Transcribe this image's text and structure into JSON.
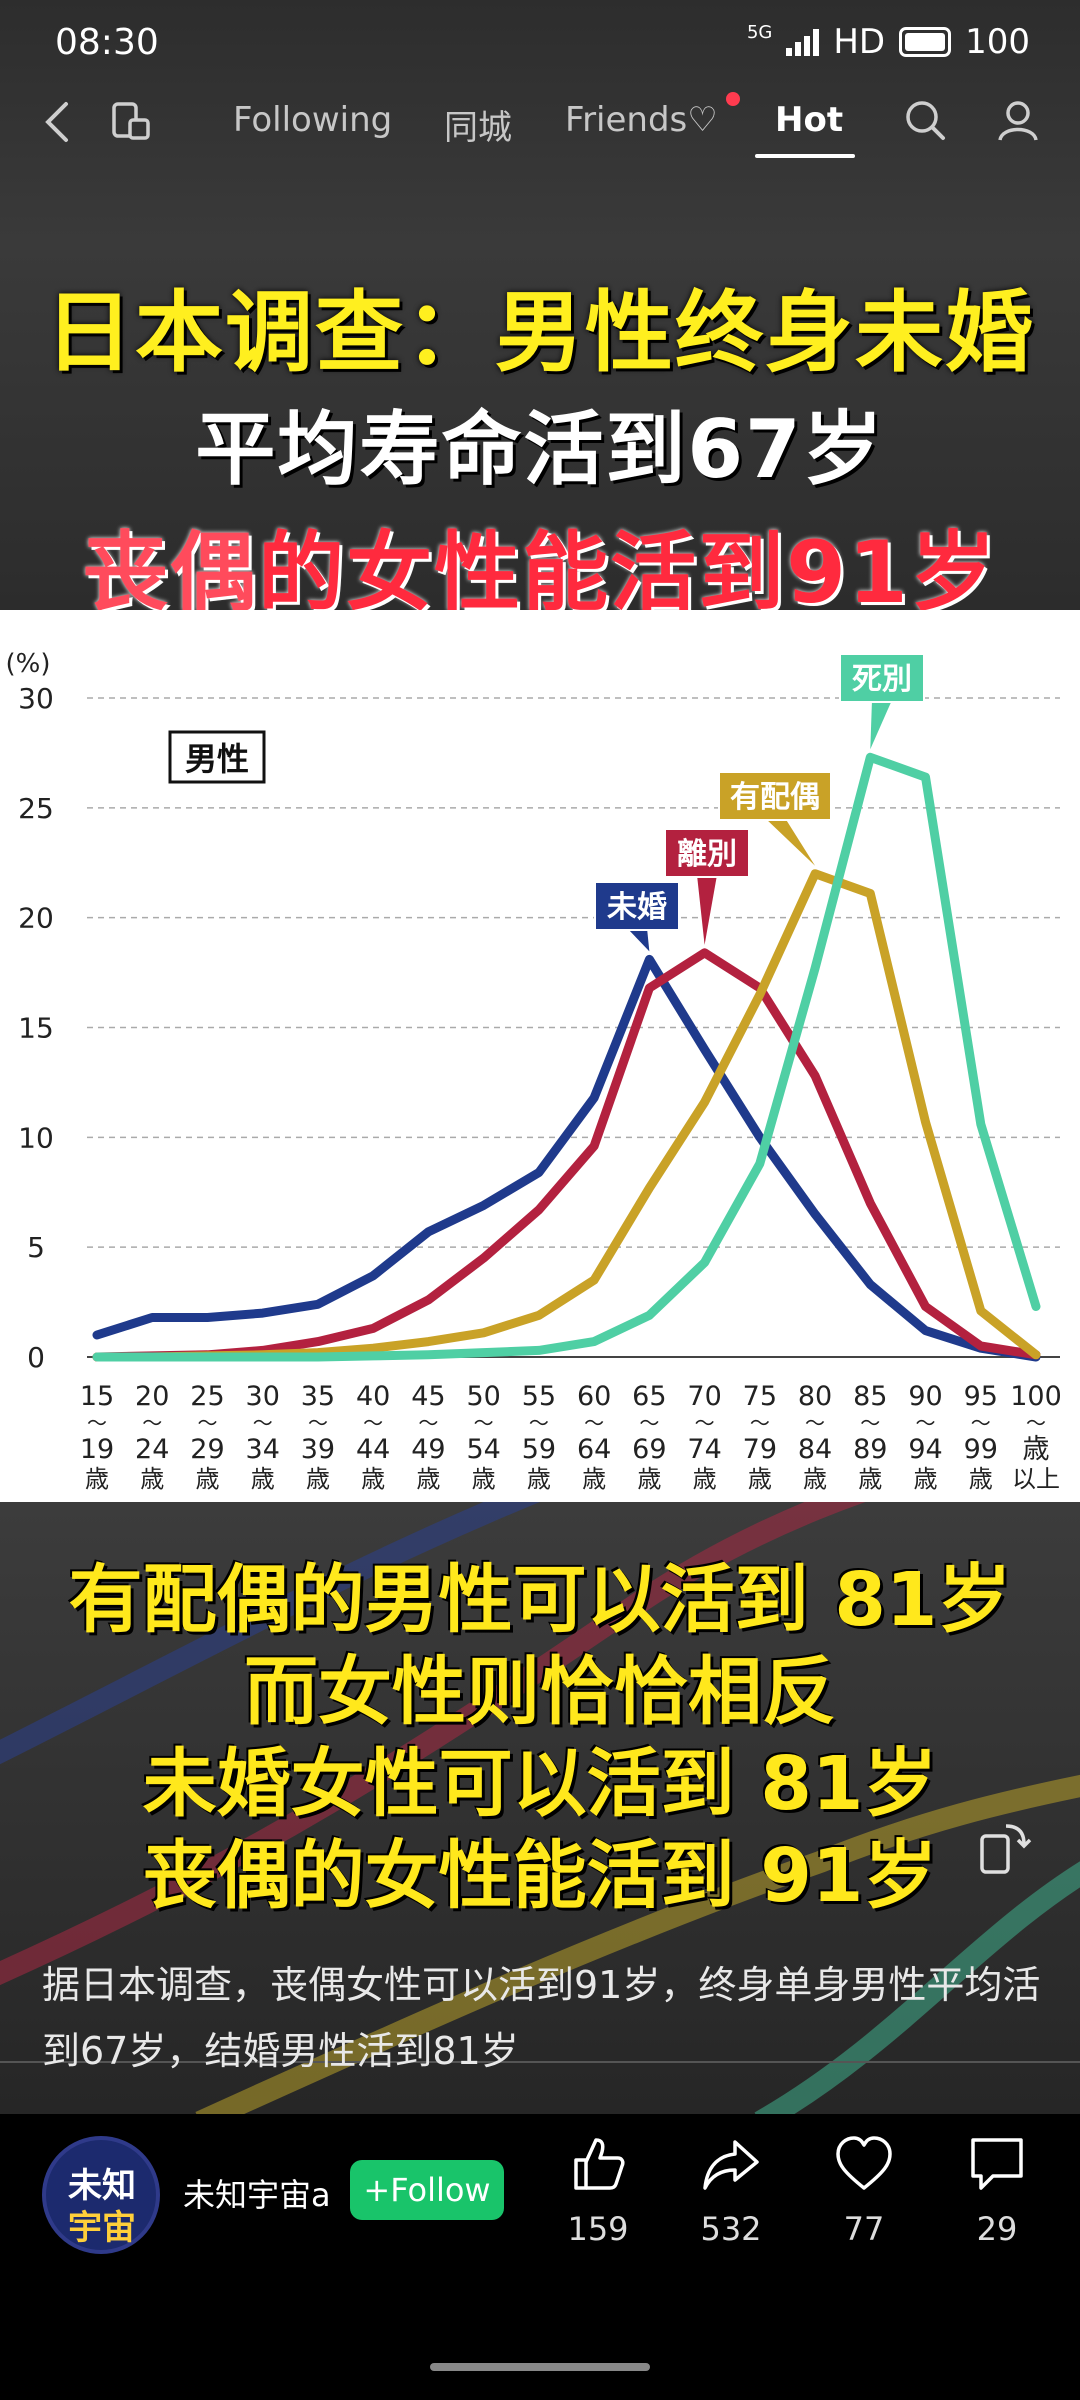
{
  "status_bar": {
    "time": "08:30",
    "network": "5G",
    "hd": "HD",
    "battery": "100"
  },
  "nav": {
    "tabs": [
      {
        "label": "Following"
      },
      {
        "label": "同城"
      },
      {
        "label": "Friends♡"
      },
      {
        "label": "Hot"
      }
    ],
    "active_tab": "Hot"
  },
  "video_title": {
    "line1": "日本调查：男性终身未婚",
    "line2": "平均寿命活到67岁",
    "line3_a": "丧偶",
    "line3_b": "的女性能活到91岁"
  },
  "chart_data": {
    "type": "line",
    "title": "男性",
    "ylabel": "(%)",
    "ylim": [
      0,
      30
    ],
    "yticks": [
      0,
      5,
      10,
      15,
      20,
      25,
      30
    ],
    "grid": true,
    "categories": [
      "15〜19歳",
      "20〜24歳",
      "25〜29歳",
      "30〜34歳",
      "35〜39歳",
      "40〜44歳",
      "45〜49歳",
      "50〜54歳",
      "55〜59歳",
      "60〜64歳",
      "65〜69歳",
      "70〜74歳",
      "75〜79歳",
      "80〜84歳",
      "85〜89歳",
      "90〜94歳",
      "95〜99歳",
      "100歳以上"
    ],
    "tick_top": [
      "15",
      "20",
      "25",
      "30",
      "35",
      "40",
      "45",
      "50",
      "55",
      "60",
      "65",
      "70",
      "75",
      "80",
      "85",
      "90",
      "95",
      "100"
    ],
    "tick_bottom": [
      "19",
      "24",
      "29",
      "34",
      "39",
      "44",
      "49",
      "54",
      "59",
      "64",
      "69",
      "74",
      "79",
      "84",
      "89",
      "94",
      "99",
      "歳"
    ],
    "tick_bottom2": [
      "歳",
      "歳",
      "歳",
      "歳",
      "歳",
      "歳",
      "歳",
      "歳",
      "歳",
      "歳",
      "歳",
      "歳",
      "歳",
      "歳",
      "歳",
      "歳",
      "歳",
      "以上"
    ],
    "series": [
      {
        "name": "未婚",
        "color": "#1f3a8c",
        "values": [
          1.0,
          1.8,
          1.8,
          2.0,
          2.4,
          3.7,
          5.7,
          6.9,
          8.4,
          11.8,
          18.1,
          14.0,
          10.0,
          6.5,
          3.3,
          1.2,
          0.4,
          0.0
        ]
      },
      {
        "name": "離別",
        "color": "#b3213f",
        "values": [
          0.0,
          0.05,
          0.1,
          0.3,
          0.7,
          1.3,
          2.6,
          4.5,
          6.7,
          9.6,
          16.8,
          18.4,
          16.8,
          12.8,
          7.0,
          2.3,
          0.5,
          0.1
        ]
      },
      {
        "name": "有配偶",
        "color": "#c9a227",
        "values": [
          0.0,
          0.0,
          0.05,
          0.1,
          0.2,
          0.4,
          0.7,
          1.1,
          1.9,
          3.5,
          7.7,
          11.6,
          16.5,
          22.0,
          21.1,
          10.7,
          2.1,
          0.1
        ]
      },
      {
        "name": "死別",
        "color": "#4fcfa4",
        "values": [
          0.0,
          0.0,
          0.0,
          0.0,
          0.0,
          0.05,
          0.1,
          0.2,
          0.3,
          0.7,
          1.9,
          4.3,
          8.8,
          17.7,
          27.3,
          26.4,
          10.6,
          2.3
        ]
      }
    ]
  },
  "overlay_text": {
    "line1": "有配偶的男性可以活到 81岁",
    "line2": "而女性则恰恰相反",
    "line3": "未婚女性可以活到 81岁",
    "line4": "丧偶的女性能活到 91岁"
  },
  "caption": "据日本调查，丧偶女性可以活到91岁，终身单身男性平均活到67岁，结婚男性活到81岁",
  "author": {
    "avatar_line1": "未知",
    "avatar_line2": "宇宙",
    "name": "未知宇宙a",
    "follow_label": "+Follow"
  },
  "actions": {
    "like": "159",
    "share": "532",
    "favorite": "77",
    "comment": "29"
  }
}
